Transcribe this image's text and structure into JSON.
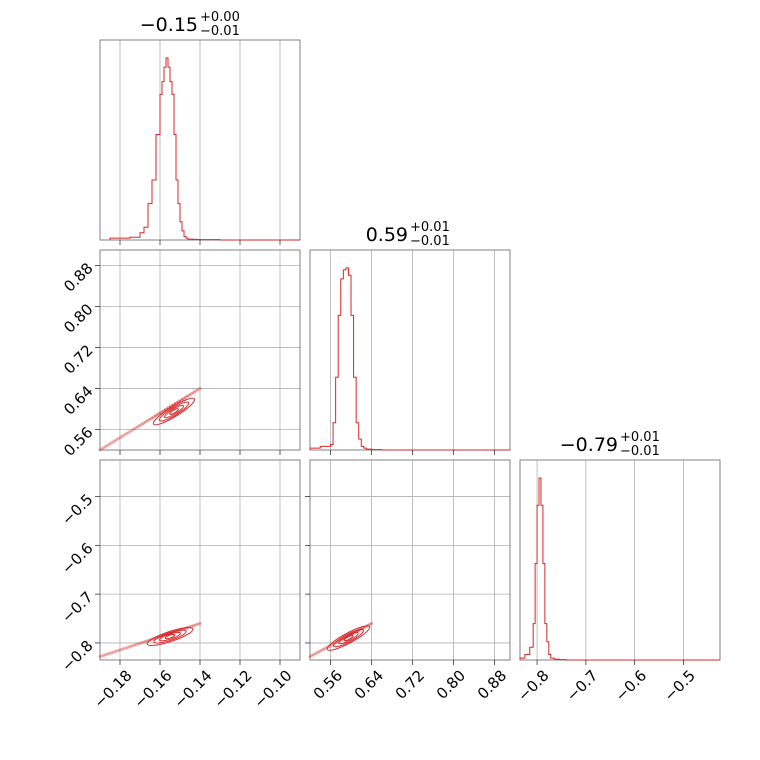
{
  "colors": {
    "accent": "#d62728",
    "grid": "#b0b0b0",
    "frame": "#808080"
  },
  "chart_data": {
    "type": "corner",
    "parameters": [
      {
        "title_main": "−0.15",
        "title_sup": "+0.00",
        "title_sub": "−0.01",
        "range": [
          -0.19,
          -0.09
        ],
        "ticks": [
          -0.18,
          -0.16,
          -0.14,
          -0.12,
          -0.1
        ],
        "tick_labels": [
          "−0.18",
          "−0.16",
          "−0.14",
          "−0.12",
          "−0.10"
        ],
        "histogram": {
          "edges": [
            -0.185,
            -0.175,
            -0.17,
            -0.168,
            -0.166,
            -0.164,
            -0.162,
            -0.16,
            -0.159,
            -0.158,
            -0.157,
            -0.156,
            -0.155,
            -0.154,
            -0.153,
            -0.152,
            -0.151,
            -0.15,
            -0.149,
            -0.148,
            -0.147,
            -0.146,
            -0.144,
            -0.142,
            -0.14,
            -0.13
          ],
          "counts": [
            0.01,
            0.015,
            0.04,
            0.07,
            0.2,
            0.33,
            0.58,
            0.8,
            0.87,
            0.95,
            1.0,
            0.95,
            0.87,
            0.8,
            0.58,
            0.33,
            0.2,
            0.1,
            0.05,
            0.02,
            0.01,
            0.005,
            0.004,
            0.003,
            0.002
          ]
        }
      },
      {
        "title_main": "0.59",
        "title_sup": "+0.01",
        "title_sub": "−0.01",
        "range": [
          0.52,
          0.91
        ],
        "ticks": [
          0.56,
          0.64,
          0.72,
          0.8,
          0.88
        ],
        "tick_labels": [
          "0.56",
          "0.64",
          "0.72",
          "0.80",
          "0.88"
        ],
        "histogram": {
          "edges": [
            0.52,
            0.54,
            0.56,
            0.565,
            0.57,
            0.575,
            0.58,
            0.585,
            0.59,
            0.595,
            0.6,
            0.605,
            0.61,
            0.615,
            0.62,
            0.625,
            0.63,
            0.64,
            0.66
          ],
          "counts": [
            0.01,
            0.02,
            0.03,
            0.15,
            0.4,
            0.74,
            0.94,
            0.99,
            1.0,
            0.96,
            0.74,
            0.4,
            0.15,
            0.06,
            0.02,
            0.01,
            0.005,
            0.002
          ]
        }
      },
      {
        "title_main": "−0.79",
        "title_sup": "+0.01",
        "title_sub": "−0.01",
        "range": [
          -0.835,
          -0.425
        ],
        "ticks": [
          -0.8,
          -0.7,
          -0.6,
          -0.5
        ],
        "tick_labels": [
          "−0.8",
          "−0.7",
          "−0.6",
          "−0.5"
        ],
        "histogram": {
          "edges": [
            -0.835,
            -0.825,
            -0.815,
            -0.808,
            -0.804,
            -0.8,
            -0.796,
            -0.792,
            -0.788,
            -0.784,
            -0.78,
            -0.776,
            -0.772,
            -0.765,
            -0.755,
            -0.74
          ],
          "counts": [
            0.01,
            0.03,
            0.07,
            0.2,
            0.53,
            0.85,
            1.0,
            0.85,
            0.53,
            0.2,
            0.1,
            0.03,
            0.01,
            0.005,
            0.002
          ]
        }
      }
    ],
    "y_axis": {
      "row1": {
        "range": [
          0.52,
          0.91
        ],
        "ticks": [
          0.56,
          0.64,
          0.72,
          0.8,
          0.88
        ],
        "tick_labels": [
          "0.56",
          "0.64",
          "0.72",
          "0.80",
          "0.88"
        ]
      },
      "row2": {
        "range": [
          -0.835,
          -0.425
        ],
        "ticks": [
          -0.8,
          -0.7,
          -0.6,
          -0.5
        ],
        "tick_labels": [
          "−0.8",
          "−0.7",
          "−0.6",
          "−0.5"
        ]
      }
    },
    "joint": [
      {
        "x_param": 0,
        "y_param": 1,
        "line_start": [
          -0.19,
          0.52
        ],
        "line_end": [
          -0.14,
          0.64
        ],
        "center": [
          -0.153,
          0.595
        ],
        "half_widths": [
          0.012,
          0.004,
          0.008,
          0.002
        ],
        "half_lengths": [
          0.018,
          0.008,
          0.012,
          0.004
        ]
      },
      {
        "x_param": 0,
        "y_param": 2,
        "line_start": [
          -0.19,
          -0.828
        ],
        "line_end": [
          -0.14,
          -0.76
        ],
        "center": [
          -0.155,
          -0.787
        ],
        "half_widths": [
          0.012,
          0.005,
          0.008,
          0.003
        ],
        "half_lengths": [
          0.018,
          0.008,
          0.012,
          0.004
        ]
      },
      {
        "x_param": 1,
        "y_param": 2,
        "line_start": [
          0.52,
          -0.828
        ],
        "line_end": [
          0.64,
          -0.76
        ],
        "center": [
          0.595,
          -0.79
        ],
        "half_widths": [
          0.012,
          0.005,
          0.008,
          0.003
        ],
        "half_lengths": [
          0.018,
          0.008,
          0.012,
          0.004
        ]
      }
    ],
    "grid": true
  }
}
